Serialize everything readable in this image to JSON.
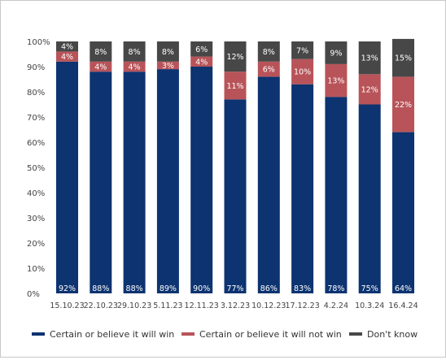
{
  "chart_data": {
    "type": "bar",
    "stacked": true,
    "categories": [
      "15.10.23",
      "22.10.23",
      "29.10.23",
      "5.11.23",
      "12.11.23",
      "3.12.23",
      "10.12.23",
      "17.12.23",
      "4.2.24",
      "10.3.24",
      "16.4.24"
    ],
    "series": [
      {
        "name": "Certain or believe it will win",
        "color": "#0d3370",
        "values": [
          92,
          88,
          88,
          89,
          90,
          77,
          86,
          83,
          78,
          75,
          64
        ]
      },
      {
        "name": "Certain or believe it will not win",
        "color": "#b85459",
        "values": [
          4,
          4,
          4,
          3,
          4,
          11,
          6,
          10,
          13,
          12,
          22
        ]
      },
      {
        "name": "Don't know",
        "color": "#474747",
        "values": [
          4,
          8,
          8,
          8,
          6,
          12,
          8,
          7,
          9,
          13,
          15
        ]
      }
    ],
    "ylim": [
      0,
      100
    ],
    "yticks": [
      "0%",
      "10%",
      "20%",
      "30%",
      "40%",
      "50%",
      "60%",
      "70%",
      "80%",
      "90%",
      "100%"
    ],
    "grid": false,
    "legend": "bottom"
  }
}
